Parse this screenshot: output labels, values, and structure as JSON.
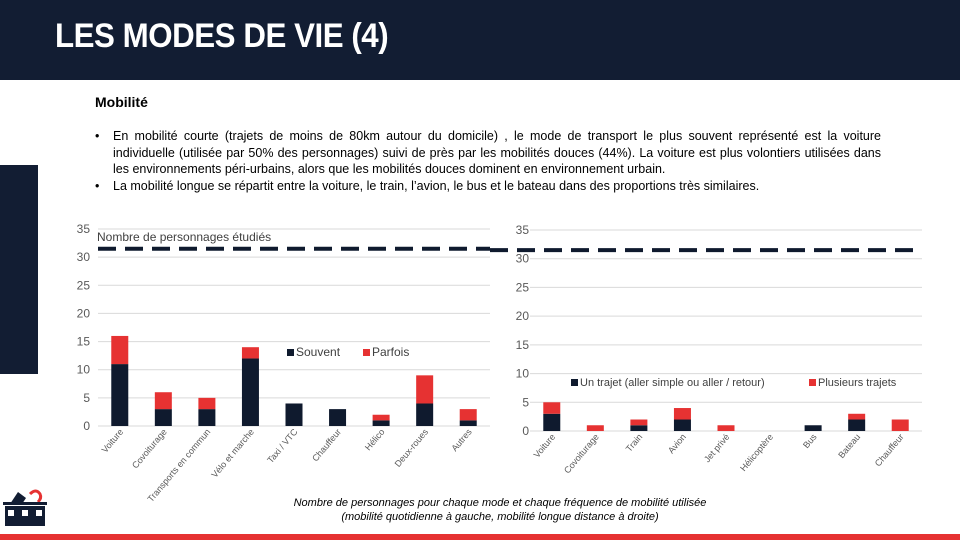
{
  "title": "LES MODES DE VIE (4)",
  "section_title": "Mobilité",
  "bullets": [
    "En mobilité courte (trajets de moins de 80km autour du domicile) , le mode de transport le plus souvent représenté est la voiture individuelle (utilisée par 50% des personnages) suivi de près par les mobilités douces (44%). La voiture est plus volontiers utilisées dans les environnements péri-urbains, alors que les mobilités douces dominent en environnement urbain.",
    "La mobilité longue se répartit entre la voiture, le train, l’avion, le bus et le bateau dans des proportions très similaires."
  ],
  "caption_line1": "Nombre de personnages pour chaque mode et chaque fréquence de mobilité utilisée",
  "caption_line2": "(mobilité quotidienne à gauche, mobilité longue distance à droite)",
  "colors": {
    "header": "#121d33",
    "dark": "#0f1a2e",
    "red": "#e63232"
  },
  "chart_data": [
    {
      "type": "bar",
      "stacked": true,
      "ylim": [
        0,
        35
      ],
      "yticks": [
        0,
        5,
        10,
        15,
        20,
        25,
        30,
        35
      ],
      "grid": true,
      "legend_position": "center-right",
      "reference_line": {
        "label": "Nombre de personnages étudiés",
        "value": 31.5,
        "style": "dashed"
      },
      "categories": [
        "Voiture",
        "Covoiturage",
        "Transports en commun",
        "Vélo et marche",
        "Taxi / VTC",
        "Chauffeur",
        "Hélico",
        "Deux-roues",
        "Autres"
      ],
      "series": [
        {
          "name": "Souvent",
          "color": "#0f1a2e",
          "values": [
            11,
            3,
            3,
            12,
            4,
            3,
            1,
            4,
            1
          ]
        },
        {
          "name": "Parfois",
          "color": "#e63232",
          "values": [
            5,
            3,
            2,
            2,
            0,
            0,
            1,
            5,
            2
          ]
        }
      ]
    },
    {
      "type": "bar",
      "stacked": true,
      "ylim": [
        0,
        35
      ],
      "yticks": [
        0,
        5,
        10,
        15,
        20,
        25,
        30,
        35
      ],
      "grid": true,
      "legend_position": "center",
      "reference_line": {
        "value": 31.5,
        "style": "dashed"
      },
      "categories": [
        "Voiture",
        "Covoiturage",
        "Train",
        "Avion",
        "Jet privé",
        "Hélicoptère",
        "Bus",
        "Bateau",
        "Chauffeur"
      ],
      "series": [
        {
          "name": "Un trajet (aller simple ou aller / retour)",
          "color": "#0f1a2e",
          "values": [
            3,
            0,
            1,
            2,
            0,
            0,
            1,
            2,
            0
          ]
        },
        {
          "name": "Plusieurs trajets",
          "color": "#e63232",
          "values": [
            2,
            1,
            1,
            2,
            1,
            0,
            0,
            1,
            2
          ]
        }
      ]
    }
  ]
}
